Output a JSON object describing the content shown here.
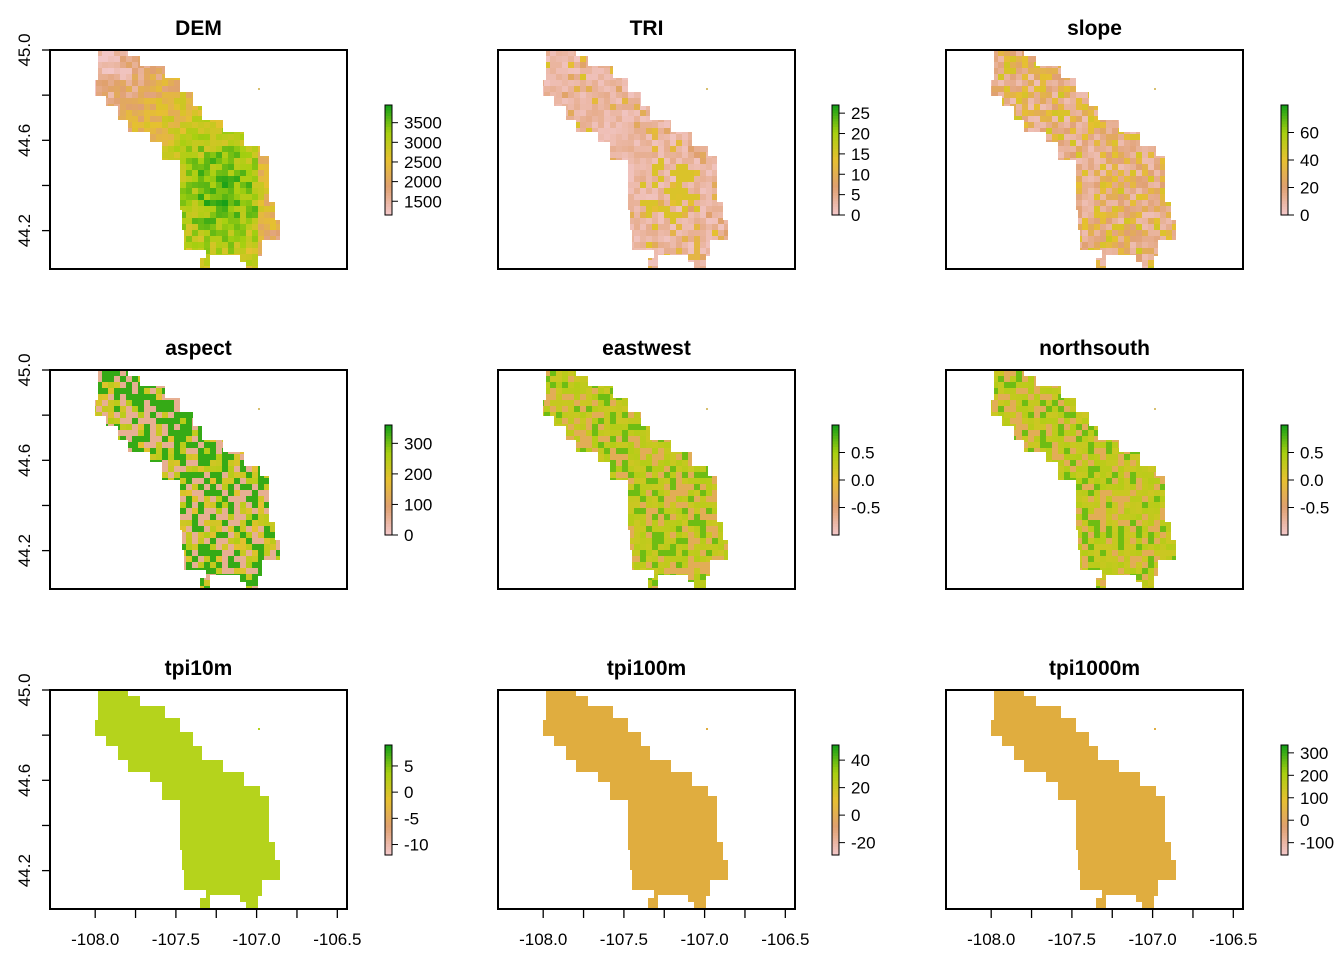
{
  "chart_data": [
    {
      "type": "heatmap",
      "title": "DEM",
      "legend": {
        "labels": [
          "3500",
          "3000",
          "2500",
          "2000",
          "1500"
        ],
        "ticks": [
          3500,
          3000,
          2500,
          2000,
          1500
        ],
        "range": [
          1150,
          3950
        ]
      },
      "fill": "relief",
      "x_ticks": [
        -108.0,
        -107.5,
        -107.0,
        -106.5
      ],
      "y_ticks": [
        45.0,
        44.6,
        44.2
      ],
      "ylim": [
        44.03,
        45.0
      ],
      "xlim": [
        -108.28,
        -106.44
      ]
    },
    {
      "type": "heatmap",
      "title": "TRI",
      "legend": {
        "labels": [
          "25",
          "20",
          "15",
          "10",
          "5",
          "0"
        ],
        "ticks": [
          25,
          20,
          15,
          10,
          5,
          0
        ],
        "range": [
          0,
          27
        ]
      },
      "fill": "low-pink"
    },
    {
      "type": "heatmap",
      "title": "slope",
      "legend": {
        "labels": [
          "60",
          "40",
          "20",
          "0"
        ],
        "ticks": [
          60,
          40,
          20,
          0
        ],
        "range": [
          0,
          80
        ]
      },
      "fill": "pink-olive"
    },
    {
      "type": "heatmap",
      "title": "aspect",
      "legend": {
        "labels": [
          "300",
          "200",
          "100",
          "0"
        ],
        "ticks": [
          300,
          200,
          100,
          0
        ],
        "range": [
          0,
          360
        ]
      },
      "fill": "striped"
    },
    {
      "type": "heatmap",
      "title": "eastwest",
      "legend": {
        "labels": [
          "0.5",
          "0.0",
          "-0.5"
        ],
        "ticks": [
          0.5,
          0.0,
          -0.5
        ],
        "range": [
          -1,
          1
        ]
      },
      "fill": "yellow-mix"
    },
    {
      "type": "heatmap",
      "title": "northsouth",
      "legend": {
        "labels": [
          "0.5",
          "0.0",
          "-0.5"
        ],
        "ticks": [
          0.5,
          0.0,
          -0.5
        ],
        "range": [
          -1,
          1
        ]
      },
      "fill": "yellow-mix"
    },
    {
      "type": "heatmap",
      "title": "tpi10m",
      "legend": {
        "labels": [
          "5",
          "0",
          "-5",
          "-10"
        ],
        "ticks": [
          5,
          0,
          -5,
          -10
        ],
        "range": [
          -12,
          9
        ]
      },
      "fill": "uniform",
      "color": "#b5d31c"
    },
    {
      "type": "heatmap",
      "title": "tpi100m",
      "legend": {
        "labels": [
          "40",
          "20",
          "0",
          "-20"
        ],
        "ticks": [
          40,
          20,
          0,
          -20
        ],
        "range": [
          -29,
          51
        ]
      },
      "fill": "uniform",
      "color": "#e0ad3f"
    },
    {
      "type": "heatmap",
      "title": "tpi1000m",
      "legend": {
        "labels": [
          "300",
          "200",
          "100",
          "0",
          "-100"
        ],
        "ticks": [
          300,
          200,
          100,
          0,
          -100
        ],
        "range": [
          -155,
          335
        ]
      },
      "fill": "uniform",
      "color": "#e0ad3f"
    }
  ],
  "axes": {
    "x_tick_labels": [
      "-108.0",
      "-107.5",
      "-107.0",
      "-106.5"
    ],
    "y_tick_labels": [
      "45.0",
      "44.6",
      "44.2"
    ]
  },
  "colors": {
    "low": "#f2c6c6",
    "mid_low": "#e0a070",
    "mid": "#e6c030",
    "mid_high": "#a8d010",
    "high": "#18a018"
  }
}
